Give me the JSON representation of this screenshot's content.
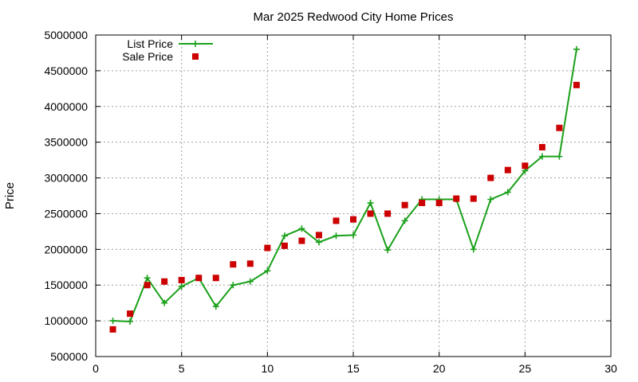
{
  "chart_data": {
    "type": "line",
    "title": "Mar 2025 Redwood City Home Prices",
    "xlabel": "",
    "ylabel": "Price",
    "xlim": [
      0,
      30
    ],
    "ylim": [
      500000,
      5000000
    ],
    "xticks": [
      "0",
      "5",
      "10",
      "15",
      "20",
      "25",
      "30"
    ],
    "yticks": [
      "500000",
      "1000000",
      "1500000",
      "2000000",
      "2500000",
      "3000000",
      "3500000",
      "4000000",
      "4500000",
      "5000000"
    ],
    "grid": true,
    "legend_position": "top-left",
    "series": [
      {
        "name": "List Price",
        "style": "line-with-plus-markers",
        "color": "#1aa01a",
        "x": [
          1,
          2,
          3,
          4,
          5,
          6,
          7,
          8,
          9,
          10,
          11,
          12,
          13,
          14,
          15,
          16,
          17,
          18,
          19,
          20,
          21,
          22,
          23,
          24,
          25,
          26,
          27,
          28
        ],
        "y": [
          1000000,
          990000,
          1600000,
          1250000,
          1480000,
          1600000,
          1200000,
          1500000,
          1550000,
          1700000,
          2190000,
          2290000,
          2100000,
          2190000,
          2200000,
          2650000,
          1990000,
          2400000,
          2700000,
          2700000,
          2700000,
          2000000,
          2700000,
          2800000,
          3100000,
          3300000,
          3300000,
          4800000
        ]
      },
      {
        "name": "Sale Price",
        "style": "square-markers",
        "color": "#cc0000",
        "x": [
          1,
          2,
          3,
          4,
          5,
          6,
          7,
          8,
          9,
          10,
          11,
          12,
          13,
          14,
          15,
          16,
          17,
          18,
          19,
          20,
          21,
          22,
          23,
          24,
          25,
          26,
          27,
          28
        ],
        "y": [
          880000,
          1100000,
          1500000,
          1550000,
          1570000,
          1600000,
          1600000,
          1790000,
          1800000,
          2020000,
          2050000,
          2120000,
          2200000,
          2400000,
          2420000,
          2500000,
          2500000,
          2620000,
          2650000,
          2650000,
          2710000,
          2710000,
          3000000,
          3110000,
          3170000,
          3430000,
          3700000,
          4300000
        ]
      }
    ]
  }
}
